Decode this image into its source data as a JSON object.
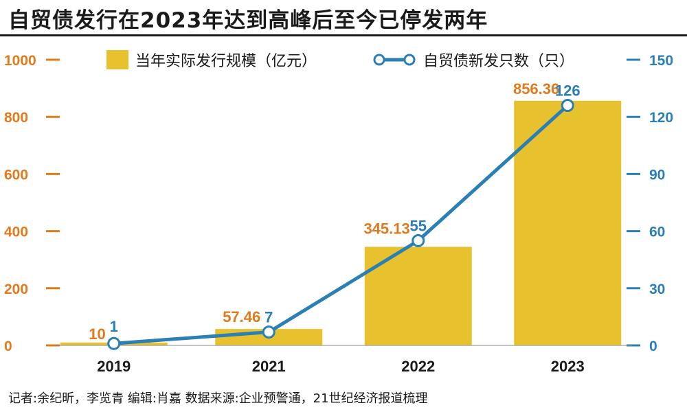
{
  "title": "自贸债发行在2023年达到高峰后至今已停发两年",
  "footer": "记者:余纪昕，李览青  编辑:肖嘉  数据来源:企业预警通，21世纪经济报道梳理",
  "colors": {
    "bar": "#e8c22e",
    "bar_label": "#e07a1c",
    "left_axis": "#e07a1c",
    "line": "#2a7fb5",
    "line_label": "#2a7fb5",
    "right_axis": "#2a7fb5",
    "marker_fill": "#ffffff",
    "text": "#1a1a1a"
  },
  "chart_data": {
    "type": "bar",
    "categories": [
      "2019",
      "2021",
      "2022",
      "2023"
    ],
    "series": [
      {
        "name": "当年实际发行规模（亿元）",
        "type": "bar",
        "axis": "left",
        "values": [
          10,
          57.46,
          345.13,
          856.36
        ],
        "labels": [
          "10",
          "57.46",
          "345.13",
          "856.36"
        ]
      },
      {
        "name": "自贸债新发只数（只）",
        "type": "line",
        "axis": "right",
        "values": [
          1,
          7,
          55,
          126
        ],
        "labels": [
          "1",
          "7",
          "55",
          "126"
        ]
      }
    ],
    "y_left": {
      "ticks": [
        0,
        200,
        400,
        600,
        800,
        1000
      ],
      "ylim": [
        0,
        1000
      ]
    },
    "y_right": {
      "ticks": [
        0,
        30,
        60,
        90,
        120,
        150
      ],
      "ylim": [
        0,
        150
      ]
    },
    "legend_position": "top",
    "grid": false
  }
}
